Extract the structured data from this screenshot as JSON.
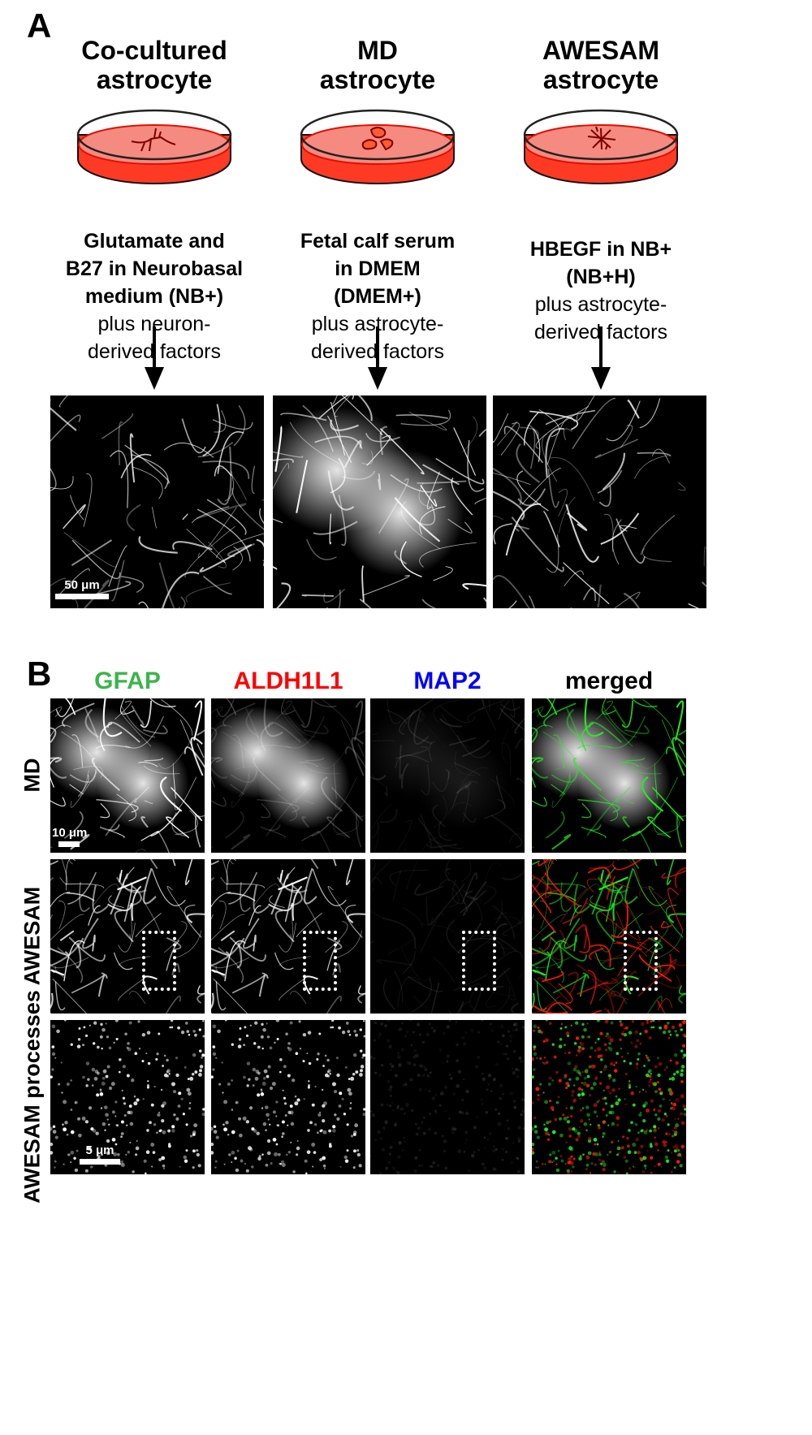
{
  "panel_a": {
    "letter": "A",
    "columns": [
      {
        "title": [
          "Co-cultured",
          "astrocyte"
        ],
        "bold": [
          "Glutamate and",
          "B27 in Neurobasal",
          "medium (NB+)"
        ],
        "normal": [
          "plus neuron-",
          "derived factors"
        ],
        "dish_icon": "branched-astrocyte-icon"
      },
      {
        "title": [
          "MD",
          "astrocyte"
        ],
        "bold": [
          "Fetal calf serum",
          "in DMEM",
          "(DMEM+)"
        ],
        "normal": [
          "plus astrocyte-",
          "derived factors"
        ],
        "dish_icon": "flat-cells-icon"
      },
      {
        "title": [
          "AWESAM",
          "astrocyte"
        ],
        "bold": [
          "HBEGF in NB+",
          "(NB+H)"
        ],
        "normal": [
          "plus astrocyte-",
          "derived factors"
        ],
        "dish_icon": "star-astrocyte-icon"
      }
    ],
    "scale_bar": "50 μm"
  },
  "panel_b": {
    "letter": "B",
    "channels": [
      {
        "label": "GFAP",
        "color": "#3cb44b"
      },
      {
        "label": "ALDH1L1",
        "color": "#ff0000"
      },
      {
        "label": "MAP2",
        "color": "#0000ff"
      },
      {
        "label": "merged",
        "color": "#000000"
      }
    ],
    "rows": [
      "MD",
      "AWESAM",
      "AWESAM processes"
    ],
    "scale_bars": [
      "10 μm",
      "5 μm"
    ]
  }
}
